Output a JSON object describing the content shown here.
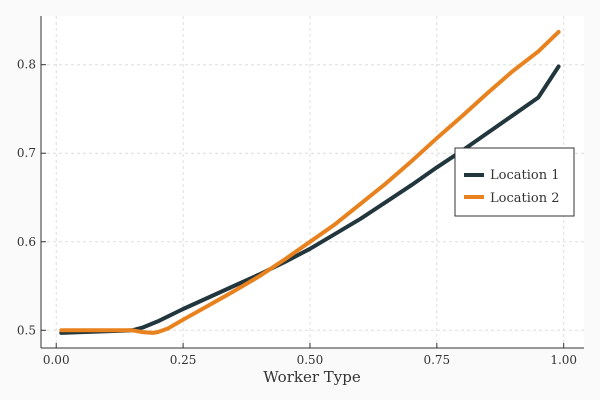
{
  "chart_data": {
    "type": "line",
    "title": "",
    "xlabel": "Worker Type",
    "ylabel": "",
    "xlim": [
      -0.03,
      1.04
    ],
    "ylim": [
      0.48,
      0.855
    ],
    "xticks": [
      0.0,
      0.25,
      0.5,
      0.75,
      1.0
    ],
    "xtick_labels": [
      "0.00",
      "0.25",
      "0.50",
      "0.75",
      "1.00"
    ],
    "yticks": [
      0.5,
      0.6,
      0.7,
      0.8
    ],
    "ytick_labels": [
      "0.5",
      "0.6",
      "0.7",
      "0.8"
    ],
    "grid": true,
    "legend_position": "right",
    "series": [
      {
        "name": "Location 1",
        "color": "#22363d",
        "x": [
          0.01,
          0.05,
          0.1,
          0.15,
          0.17,
          0.2,
          0.25,
          0.3,
          0.35,
          0.4,
          0.45,
          0.5,
          0.55,
          0.6,
          0.65,
          0.7,
          0.75,
          0.8,
          0.85,
          0.9,
          0.95,
          0.99
        ],
        "y": [
          0.497,
          0.498,
          0.499,
          0.5,
          0.503,
          0.51,
          0.524,
          0.537,
          0.55,
          0.563,
          0.577,
          0.592,
          0.609,
          0.626,
          0.645,
          0.664,
          0.684,
          0.703,
          0.723,
          0.743,
          0.763,
          0.798
        ]
      },
      {
        "name": "Location 2",
        "color": "#e8821e",
        "x": [
          0.01,
          0.05,
          0.1,
          0.15,
          0.17,
          0.19,
          0.2,
          0.22,
          0.25,
          0.3,
          0.35,
          0.4,
          0.45,
          0.5,
          0.55,
          0.6,
          0.65,
          0.7,
          0.75,
          0.8,
          0.85,
          0.9,
          0.95,
          0.99
        ],
        "y": [
          0.5,
          0.5,
          0.5,
          0.5,
          0.498,
          0.497,
          0.498,
          0.502,
          0.512,
          0.528,
          0.544,
          0.561,
          0.58,
          0.6,
          0.62,
          0.643,
          0.666,
          0.691,
          0.717,
          0.742,
          0.768,
          0.793,
          0.815,
          0.837
        ]
      }
    ]
  }
}
